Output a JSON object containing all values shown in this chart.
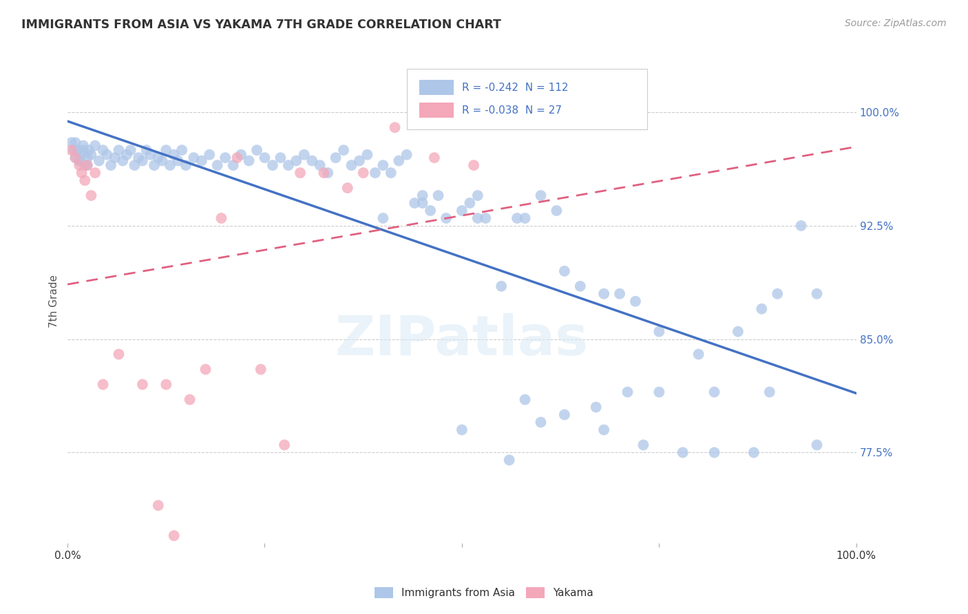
{
  "title": "IMMIGRANTS FROM ASIA VS YAKAMA 7TH GRADE CORRELATION CHART",
  "source": "Source: ZipAtlas.com",
  "ylabel": "7th Grade",
  "ytick_labels": [
    "100.0%",
    "92.5%",
    "85.0%",
    "77.5%"
  ],
  "ytick_values": [
    1.0,
    0.925,
    0.85,
    0.775
  ],
  "xlim": [
    0.0,
    1.0
  ],
  "ylim": [
    0.715,
    1.035
  ],
  "blue_color": "#aec6e8",
  "blue_line_color": "#4472c4",
  "pink_color": "#f4a7b9",
  "pink_line_color": "#e06080",
  "blue_R": -0.242,
  "blue_N": 112,
  "pink_R": -0.038,
  "pink_N": 27,
  "watermark": "ZIPatlas",
  "legend_label_blue": "Immigrants from Asia",
  "legend_label_pink": "Yakama",
  "blue_scatter_x": [
    0.005,
    0.008,
    0.01,
    0.012,
    0.015,
    0.018,
    0.02,
    0.022,
    0.025,
    0.027,
    0.01,
    0.015,
    0.02,
    0.025,
    0.03,
    0.035,
    0.04,
    0.045,
    0.05,
    0.055,
    0.06,
    0.065,
    0.07,
    0.075,
    0.08,
    0.085,
    0.09,
    0.095,
    0.1,
    0.105,
    0.11,
    0.115,
    0.12,
    0.125,
    0.13,
    0.135,
    0.14,
    0.145,
    0.15,
    0.16,
    0.17,
    0.18,
    0.19,
    0.2,
    0.21,
    0.22,
    0.23,
    0.24,
    0.25,
    0.26,
    0.27,
    0.28,
    0.29,
    0.3,
    0.31,
    0.32,
    0.33,
    0.34,
    0.35,
    0.36,
    0.37,
    0.38,
    0.39,
    0.4,
    0.41,
    0.42,
    0.43,
    0.44,
    0.45,
    0.46,
    0.47,
    0.48,
    0.5,
    0.51,
    0.52,
    0.53,
    0.55,
    0.57,
    0.58,
    0.6,
    0.62,
    0.63,
    0.65,
    0.68,
    0.7,
    0.72,
    0.75,
    0.8,
    0.85,
    0.88,
    0.9,
    0.93,
    0.95,
    0.5,
    0.56,
    0.6,
    0.67,
    0.71,
    0.75,
    0.82,
    0.89,
    0.95,
    0.4,
    0.45,
    0.52,
    0.58,
    0.63,
    0.68,
    0.73,
    0.78,
    0.82,
    0.87
  ],
  "blue_scatter_y": [
    0.98,
    0.975,
    0.97,
    0.975,
    0.968,
    0.972,
    0.978,
    0.965,
    0.97,
    0.975,
    0.98,
    0.968,
    0.975,
    0.965,
    0.972,
    0.978,
    0.968,
    0.975,
    0.972,
    0.965,
    0.97,
    0.975,
    0.968,
    0.972,
    0.975,
    0.965,
    0.97,
    0.968,
    0.975,
    0.972,
    0.965,
    0.97,
    0.968,
    0.975,
    0.965,
    0.972,
    0.968,
    0.975,
    0.965,
    0.97,
    0.968,
    0.972,
    0.965,
    0.97,
    0.965,
    0.972,
    0.968,
    0.975,
    0.97,
    0.965,
    0.97,
    0.965,
    0.968,
    0.972,
    0.968,
    0.965,
    0.96,
    0.97,
    0.975,
    0.965,
    0.968,
    0.972,
    0.96,
    0.965,
    0.96,
    0.968,
    0.972,
    0.94,
    0.945,
    0.935,
    0.945,
    0.93,
    0.935,
    0.94,
    0.945,
    0.93,
    0.885,
    0.93,
    0.93,
    0.945,
    0.935,
    0.895,
    0.885,
    0.88,
    0.88,
    0.875,
    0.855,
    0.84,
    0.855,
    0.87,
    0.88,
    0.925,
    0.88,
    0.79,
    0.77,
    0.795,
    0.805,
    0.815,
    0.815,
    0.815,
    0.815,
    0.78,
    0.93,
    0.94,
    0.93,
    0.81,
    0.8,
    0.79,
    0.78,
    0.775,
    0.775,
    0.775
  ],
  "pink_scatter_x": [
    0.005,
    0.01,
    0.015,
    0.018,
    0.022,
    0.025,
    0.03,
    0.035,
    0.045,
    0.065,
    0.095,
    0.115,
    0.135,
    0.125,
    0.155,
    0.175,
    0.195,
    0.215,
    0.245,
    0.275,
    0.295,
    0.325,
    0.355,
    0.375,
    0.415,
    0.465,
    0.515
  ],
  "pink_scatter_y": [
    0.975,
    0.97,
    0.965,
    0.96,
    0.955,
    0.965,
    0.945,
    0.96,
    0.82,
    0.84,
    0.82,
    0.74,
    0.72,
    0.82,
    0.81,
    0.83,
    0.93,
    0.97,
    0.83,
    0.78,
    0.96,
    0.96,
    0.95,
    0.96,
    0.99,
    0.97,
    0.965
  ]
}
